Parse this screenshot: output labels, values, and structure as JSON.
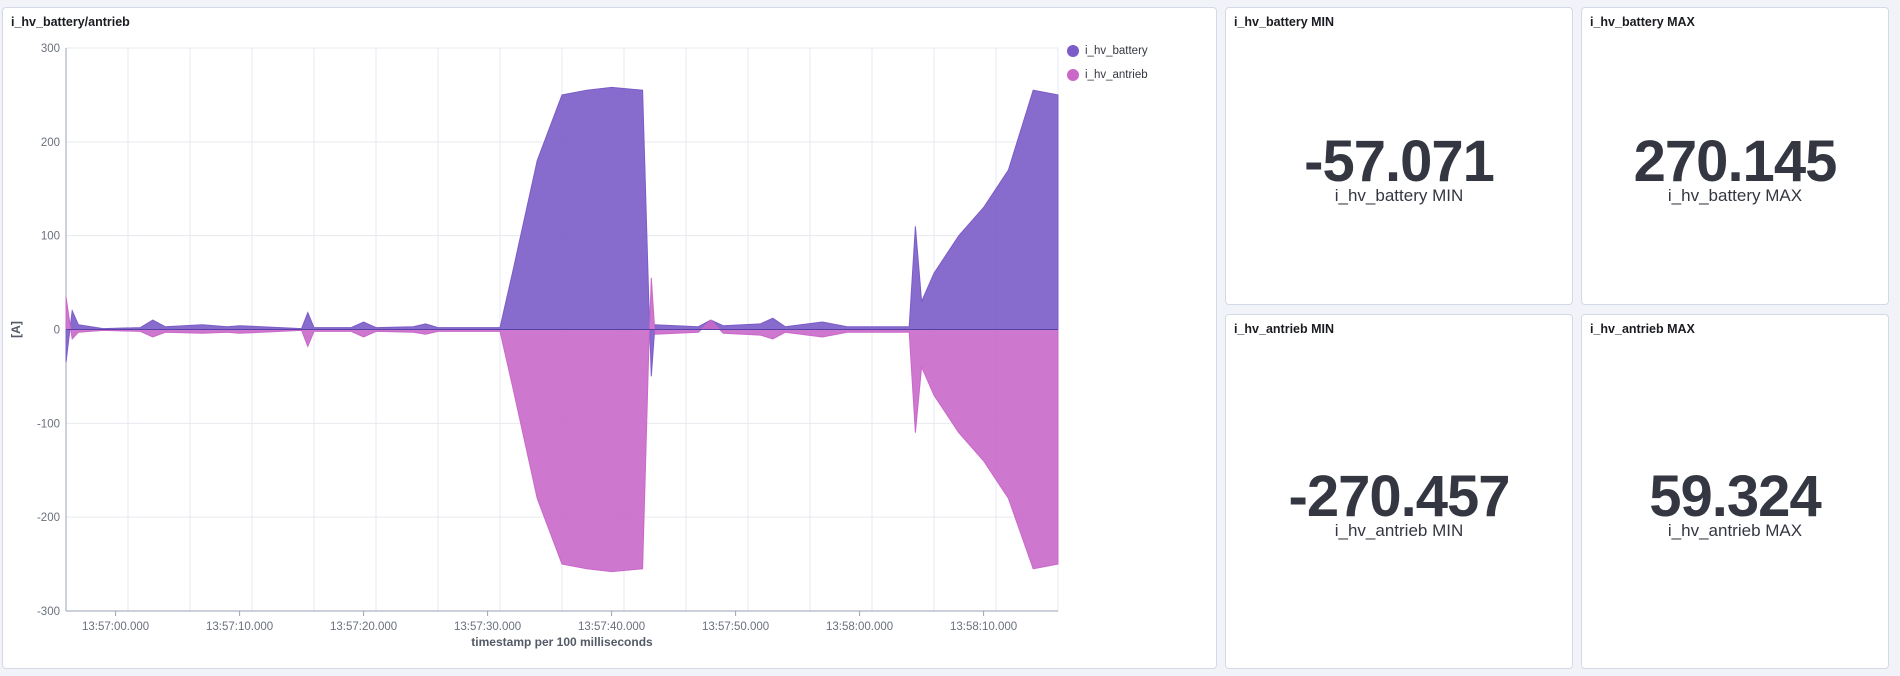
{
  "chart_panel": {
    "title": "i_hv_battery/antrieb"
  },
  "metrics": [
    {
      "title": "i_hv_battery MIN",
      "value": "-57.071",
      "label": "i_hv_battery MIN"
    },
    {
      "title": "i_hv_battery MAX",
      "value": "270.145",
      "label": "i_hv_battery MAX"
    },
    {
      "title": "i_hv_antrieb MIN",
      "value": "-270.457",
      "label": "i_hv_antrieb MIN"
    },
    {
      "title": "i_hv_antrieb MAX",
      "value": "59.324",
      "label": "i_hv_antrieb MAX"
    }
  ],
  "colors": {
    "battery": "#7b5cc8",
    "antrieb": "#c968c9",
    "grid": "#e6e9ef",
    "axis": "#98a2b3"
  },
  "chart_data": {
    "type": "area",
    "xlabel": "timestamp per 100 milliseconds",
    "ylabel": "[A]",
    "ylim": [
      -300,
      300
    ],
    "yticks": [
      300,
      200,
      100,
      0,
      -100,
      -200,
      -300
    ],
    "xlim": [
      "13:56:56.000",
      "13:58:16.000"
    ],
    "xticks": [
      "13:57:00.000",
      "13:57:10.000",
      "13:57:20.000",
      "13:57:30.000",
      "13:57:40.000",
      "13:57:50.000",
      "13:58:00.000",
      "13:58:10.000"
    ],
    "legend_position": "top-right",
    "series": [
      {
        "name": "i_hv_battery",
        "points": [
          [
            "13:56:56.0",
            -35
          ],
          [
            "13:56:56.5",
            20
          ],
          [
            "13:56:57.0",
            5
          ],
          [
            "13:56:59.0",
            1
          ],
          [
            "13:57:02.0",
            2
          ],
          [
            "13:57:03.0",
            10
          ],
          [
            "13:57:04.0",
            3
          ],
          [
            "13:57:07.0",
            5
          ],
          [
            "13:57:09.0",
            3
          ],
          [
            "13:57:10.0",
            4
          ],
          [
            "13:57:15.0",
            1
          ],
          [
            "13:57:15.5",
            18
          ],
          [
            "13:57:16.0",
            2
          ],
          [
            "13:57:19.0",
            2
          ],
          [
            "13:57:20.0",
            8
          ],
          [
            "13:57:21.0",
            2
          ],
          [
            "13:57:24.0",
            3
          ],
          [
            "13:57:25.0",
            6
          ],
          [
            "13:57:26.0",
            2
          ],
          [
            "13:57:31.0",
            2
          ],
          [
            "13:57:32.0",
            60
          ],
          [
            "13:57:34.0",
            180
          ],
          [
            "13:57:36.0",
            250
          ],
          [
            "13:57:38.0",
            255
          ],
          [
            "13:57:40.0",
            258
          ],
          [
            "13:57:42.5",
            255
          ],
          [
            "13:57:43.0",
            30
          ],
          [
            "13:57:43.2",
            -50
          ],
          [
            "13:57:43.5",
            5
          ],
          [
            "13:57:47.0",
            3
          ],
          [
            "13:57:48.0",
            10
          ],
          [
            "13:57:49.0",
            4
          ],
          [
            "13:57:52.0",
            6
          ],
          [
            "13:57:53.0",
            12
          ],
          [
            "13:57:54.0",
            3
          ],
          [
            "13:57:57.0",
            8
          ],
          [
            "13:57:59.0",
            3
          ],
          [
            "13:58:04.0",
            3
          ],
          [
            "13:58:04.5",
            110
          ],
          [
            "13:58:05.0",
            30
          ],
          [
            "13:58:06.0",
            60
          ],
          [
            "13:58:08.0",
            100
          ],
          [
            "13:58:10.0",
            130
          ],
          [
            "13:58:12.0",
            170
          ],
          [
            "13:58:14.0",
            255
          ],
          [
            "13:58:16.0",
            250
          ]
        ]
      },
      {
        "name": "i_hv_antrieb",
        "points": [
          [
            "13:56:56.0",
            35
          ],
          [
            "13:56:56.5",
            -10
          ],
          [
            "13:56:57.0",
            -3
          ],
          [
            "13:56:59.0",
            -1
          ],
          [
            "13:57:02.0",
            -2
          ],
          [
            "13:57:03.0",
            -8
          ],
          [
            "13:57:04.0",
            -3
          ],
          [
            "13:57:07.0",
            -4
          ],
          [
            "13:57:09.0",
            -3
          ],
          [
            "13:57:10.0",
            -4
          ],
          [
            "13:57:15.0",
            -1
          ],
          [
            "13:57:15.5",
            -18
          ],
          [
            "13:57:16.0",
            -2
          ],
          [
            "13:57:19.0",
            -2
          ],
          [
            "13:57:20.0",
            -8
          ],
          [
            "13:57:21.0",
            -2
          ],
          [
            "13:57:24.0",
            -3
          ],
          [
            "13:57:25.0",
            -5
          ],
          [
            "13:57:26.0",
            -2
          ],
          [
            "13:57:31.0",
            -2
          ],
          [
            "13:57:32.0",
            -60
          ],
          [
            "13:57:34.0",
            -180
          ],
          [
            "13:57:36.0",
            -250
          ],
          [
            "13:57:38.0",
            -255
          ],
          [
            "13:57:40.0",
            -258
          ],
          [
            "13:57:42.5",
            -255
          ],
          [
            "13:57:43.0",
            -20
          ],
          [
            "13:57:43.2",
            55
          ],
          [
            "13:57:43.5",
            -5
          ],
          [
            "13:57:47.0",
            -3
          ],
          [
            "13:57:48.0",
            10
          ],
          [
            "13:57:49.0",
            -4
          ],
          [
            "13:57:52.0",
            -6
          ],
          [
            "13:57:53.0",
            -10
          ],
          [
            "13:57:54.0",
            -3
          ],
          [
            "13:57:57.0",
            -8
          ],
          [
            "13:57:59.0",
            -3
          ],
          [
            "13:58:04.0",
            -3
          ],
          [
            "13:58:04.5",
            -110
          ],
          [
            "13:58:05.0",
            -40
          ],
          [
            "13:58:06.0",
            -70
          ],
          [
            "13:58:08.0",
            -110
          ],
          [
            "13:58:10.0",
            -140
          ],
          [
            "13:58:12.0",
            -180
          ],
          [
            "13:58:14.0",
            -255
          ],
          [
            "13:58:16.0",
            -250
          ]
        ]
      }
    ]
  }
}
